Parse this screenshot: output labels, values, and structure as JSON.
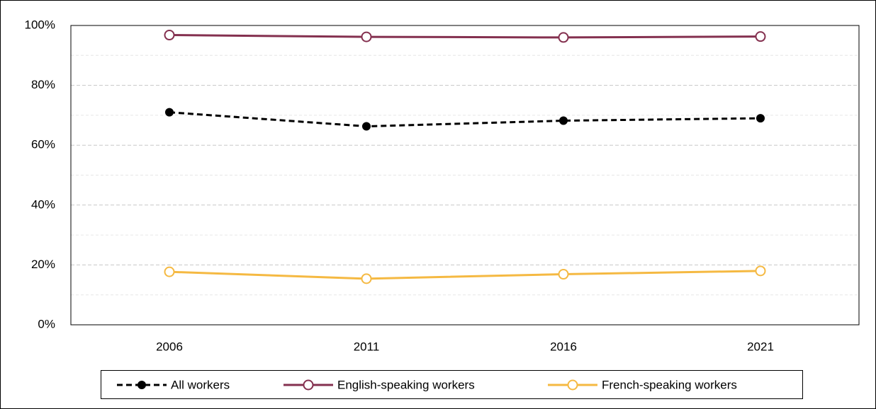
{
  "chart_data": {
    "type": "line",
    "categories": [
      "2006",
      "2011",
      "2016",
      "2021"
    ],
    "series": [
      {
        "name": "All workers",
        "color": "#000000",
        "dashed": true,
        "marker": "filled",
        "values": [
          71.0,
          66.3,
          68.2,
          69.0
        ]
      },
      {
        "name": "English-speaking workers",
        "color": "#84304f",
        "dashed": false,
        "marker": "hollow",
        "values": [
          96.8,
          96.2,
          96.0,
          96.3
        ]
      },
      {
        "name": "French-speaking workers",
        "color": "#f5b942",
        "dashed": false,
        "marker": "hollow",
        "values": [
          17.7,
          15.4,
          16.9,
          18.0
        ]
      }
    ],
    "ylim": [
      0,
      100
    ],
    "yticks": [
      {
        "value": 0,
        "label": "0%"
      },
      {
        "value": 20,
        "label": "20%"
      },
      {
        "value": 40,
        "label": "40%"
      },
      {
        "value": 60,
        "label": "60%"
      },
      {
        "value": 80,
        "label": "80%"
      },
      {
        "value": 100,
        "label": "100%"
      }
    ],
    "minor_yticks": [
      10,
      30,
      50,
      70,
      90
    ],
    "grid": true,
    "legend": "bottom"
  }
}
